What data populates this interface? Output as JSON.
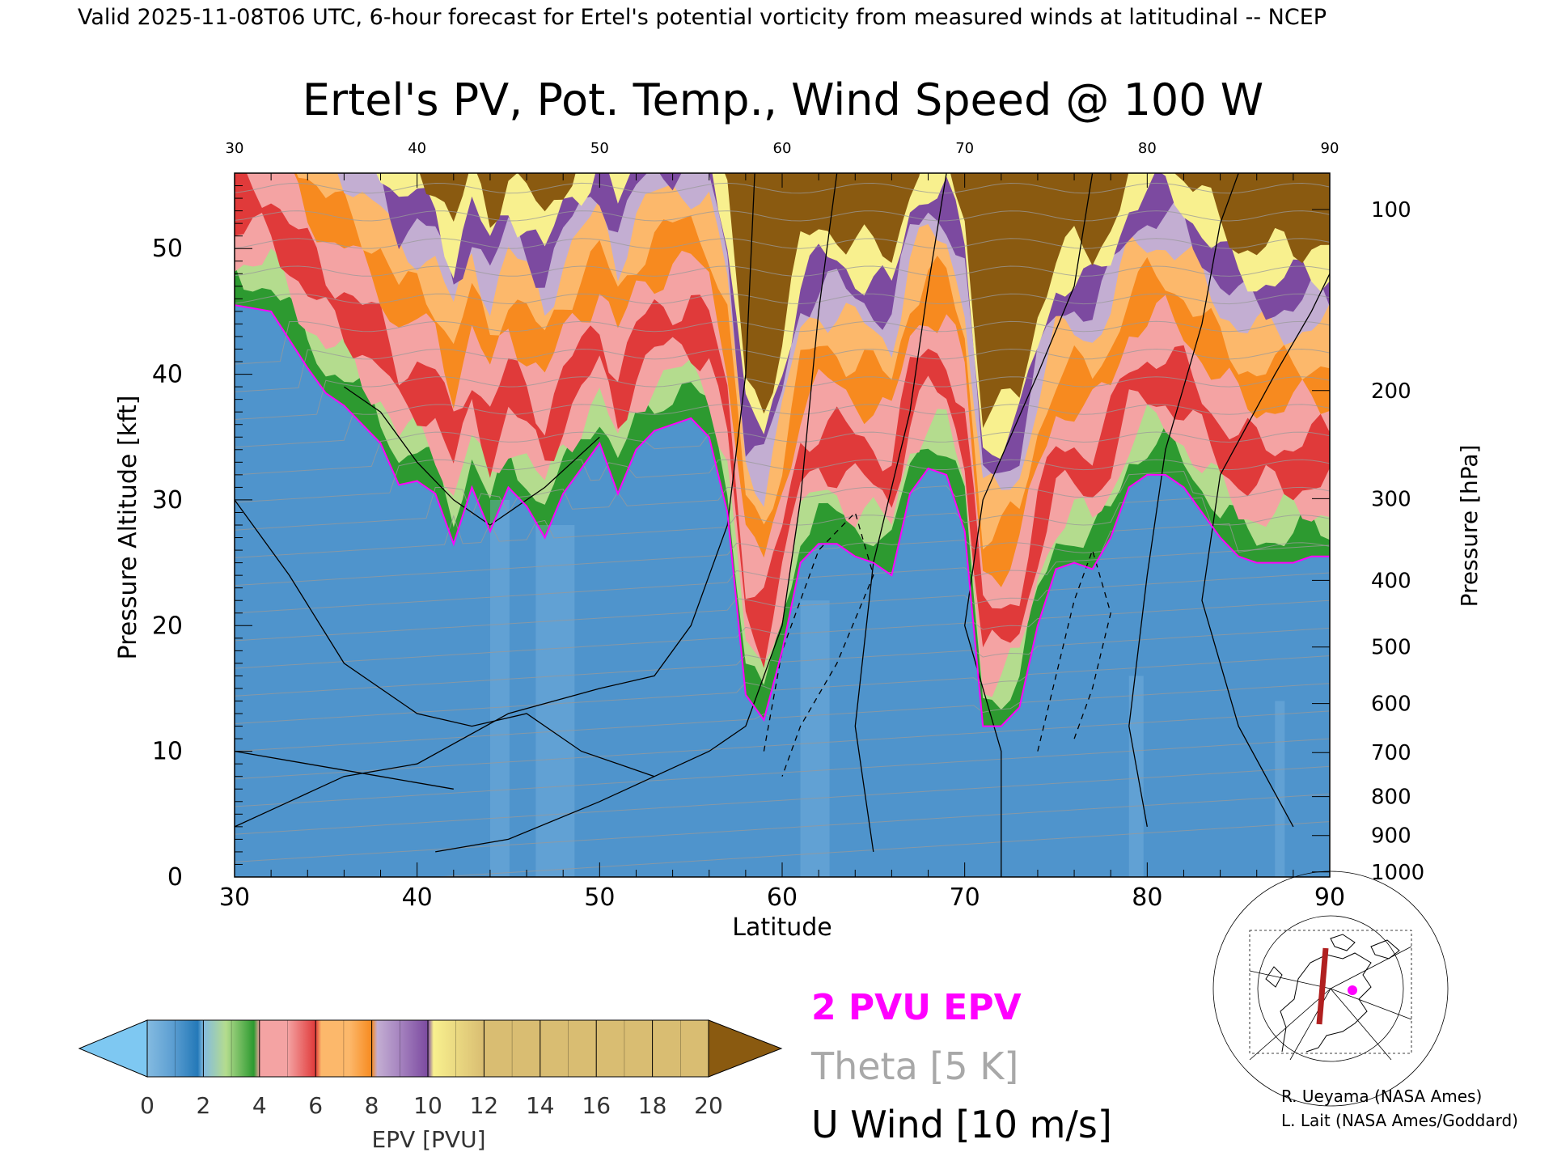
{
  "header": {
    "valid_line": "Valid 2025-11-08T06 UTC, 6-hour forecast for Ertel's potential vorticity from measured winds at latitudinal -- NCEP"
  },
  "chart_data": {
    "type": "heatmap",
    "title": "Ertel's PV, Pot. Temp., Wind Speed @ 100 W",
    "xlabel": "Latitude",
    "ylabel_left": "Pressure Altitude [kft]",
    "ylabel_right": "Pressure [hPa]",
    "xlim": [
      30,
      90
    ],
    "ylim_kft": [
      0,
      56
    ],
    "x_ticks": [
      "30",
      "40",
      "50",
      "60",
      "70",
      "80",
      "90"
    ],
    "y_ticks_kft": [
      "0",
      "10",
      "20",
      "30",
      "40",
      "50"
    ],
    "pressure_ticks": [
      {
        "label": "1000",
        "kft": 0.4
      },
      {
        "label": "900",
        "kft": 3.3
      },
      {
        "label": "800",
        "kft": 6.4
      },
      {
        "label": "700",
        "kft": 9.9
      },
      {
        "label": "600",
        "kft": 13.8
      },
      {
        "label": "500",
        "kft": 18.3
      },
      {
        "label": "400",
        "kft": 23.6
      },
      {
        "label": "300",
        "kft": 30.1
      },
      {
        "label": "200",
        "kft": 38.7
      },
      {
        "label": "100",
        "kft": 53.1
      }
    ],
    "pv_2pvu_tropopause_kft": {
      "lat": [
        30,
        32,
        34,
        35,
        36,
        38,
        39,
        40,
        41,
        42,
        43,
        44,
        45,
        46,
        47,
        48,
        50,
        51,
        52,
        53,
        54,
        55,
        56,
        57,
        58,
        59,
        60,
        61,
        62,
        63,
        64,
        65,
        66,
        67,
        68,
        69,
        70,
        71,
        72,
        73,
        74,
        75,
        76,
        77,
        78,
        79,
        80,
        81,
        82,
        83,
        84,
        85,
        86,
        87,
        88,
        89,
        90
      ],
      "kft": [
        45.5,
        45,
        40.5,
        38.5,
        37.5,
        34.5,
        31.2,
        31.5,
        30.5,
        26.5,
        31,
        27.5,
        31,
        29.5,
        27,
        30.5,
        34.5,
        30.5,
        34,
        35.5,
        36,
        36.5,
        35,
        29,
        14.5,
        12.5,
        18,
        25,
        26.5,
        26.5,
        25.5,
        25,
        24,
        30.5,
        32.5,
        32,
        27.5,
        12,
        12,
        13.5,
        20,
        24.5,
        25,
        24.5,
        27,
        31,
        32,
        32,
        31,
        29,
        27,
        25.5,
        25,
        25,
        25,
        25.5,
        25.5
      ]
    },
    "colorbar": {
      "label": "EPV [PVU]",
      "ticks": [
        "0",
        "2",
        "4",
        "6",
        "8",
        "10",
        "12",
        "14",
        "16",
        "18",
        "20"
      ]
    },
    "legend": {
      "pv_line": "2 PVU EPV",
      "theta": "Theta [5 K]",
      "wind": "U Wind [10 m/s]"
    },
    "colors": {
      "below_range": "#7ec8f2",
      "blue_light": "#84bbe1",
      "blue_dark": "#2479b8",
      "green_light": "#b4dc8e",
      "green_dark": "#2d9a30",
      "pink": "#f4a3a3",
      "red": "#e03a3a",
      "orange_light": "#fcb86b",
      "orange": "#f78a1f",
      "lavender": "#c3aed2",
      "purple": "#7c4aa0",
      "yellow": "#f8f08e",
      "above_range": "#8a5a10",
      "pv_line": "#ff00ff",
      "theta_line": "#999999"
    }
  },
  "credits": {
    "line1": "R. Ueyama (NASA Ames)",
    "line2": "L. Lait (NASA Ames/Goddard)"
  }
}
